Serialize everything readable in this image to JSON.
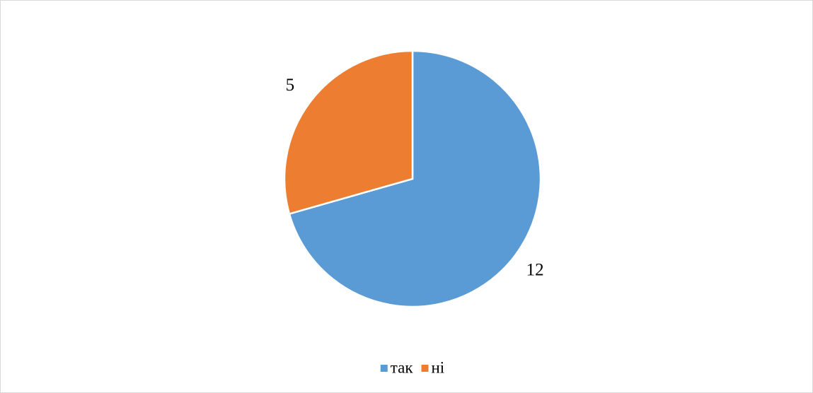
{
  "chart_data": {
    "type": "pie",
    "categories": [
      "так",
      "ні"
    ],
    "values": [
      12,
      5
    ],
    "colors": [
      "#5b9bd5",
      "#ed7d31"
    ],
    "legend": "bottom"
  }
}
